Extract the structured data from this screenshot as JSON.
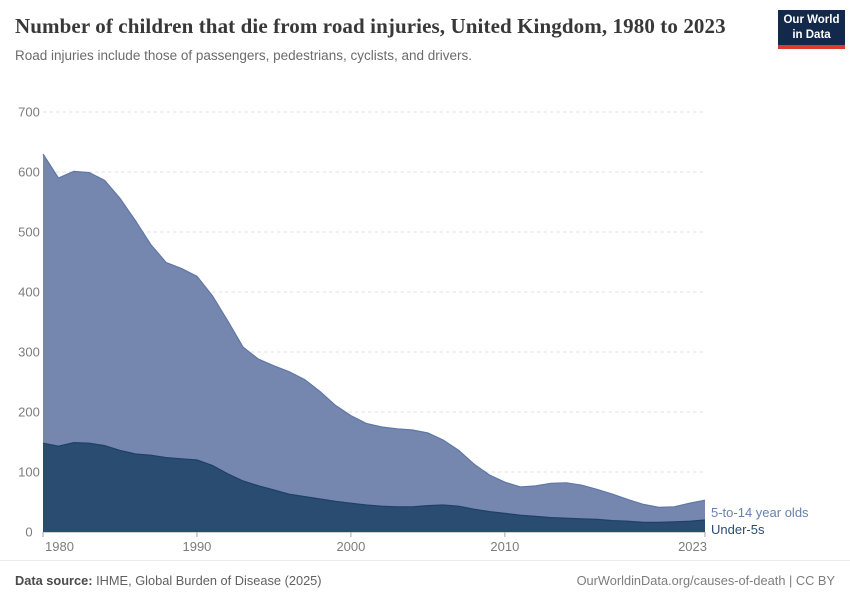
{
  "header": {
    "title": "Number of children that die from road injuries, United Kingdom, 1980 to 2023",
    "subtitle": "Road injuries include those of passengers, pedestrians, cyclists, and drivers.",
    "logo": {
      "line1": "Our World",
      "line2": "in Data"
    }
  },
  "footer": {
    "source_label": "Data source:",
    "source_text": " IHME, Global Burden of Disease (2025)",
    "right_text": "OurWorldinData.org/causes-of-death | CC BY"
  },
  "colors": {
    "gridline": "#e2e2e2",
    "axis": "#a5a5a5",
    "tick_text": "#7d7d7d",
    "title_text": "#383838",
    "logo_bg": "#12294b",
    "logo_red": "#dc3a2e"
  },
  "chart_data": {
    "type": "area",
    "stacked": true,
    "title": "Number of children that die from road injuries, United Kingdom, 1980 to 2023",
    "xlabel": "",
    "ylabel": "",
    "ylim": [
      0,
      700
    ],
    "grid": "dashed-horizontal",
    "legend_position": "right-of-plot",
    "x": [
      1980,
      1981,
      1982,
      1983,
      1984,
      1985,
      1986,
      1987,
      1988,
      1989,
      1990,
      1991,
      1992,
      1993,
      1994,
      1995,
      1996,
      1997,
      1998,
      1999,
      2000,
      2001,
      2002,
      2003,
      2004,
      2005,
      2006,
      2007,
      2008,
      2009,
      2010,
      2011,
      2012,
      2013,
      2014,
      2015,
      2016,
      2017,
      2018,
      2019,
      2020,
      2021,
      2022,
      2023
    ],
    "x_ticks": [
      1980,
      1990,
      2000,
      2010,
      2023
    ],
    "y_ticks": [
      0,
      100,
      200,
      300,
      400,
      500,
      600,
      700
    ],
    "series": [
      {
        "name": "Under-5s",
        "color": "#2b4c71",
        "edge": "#1e4067",
        "label_color": "#2b4c71",
        "values": [
          148,
          143,
          149,
          148,
          144,
          136,
          130,
          128,
          124,
          122,
          120,
          111,
          97,
          85,
          77,
          70,
          63,
          59,
          55,
          51,
          48,
          45,
          43,
          42,
          42,
          44,
          45,
          43,
          38,
          34,
          31,
          28,
          26,
          24,
          23,
          22,
          21,
          19,
          18,
          16,
          16,
          17,
          18,
          20
        ]
      },
      {
        "name": "5-to-14 year olds",
        "color": "#7687af",
        "edge": "#5e77a6",
        "label_color": "#6781b1",
        "values": [
          482,
          447,
          452,
          451,
          442,
          420,
          389,
          351,
          325,
          317,
          306,
          283,
          255,
          223,
          211,
          207,
          204,
          195,
          179,
          160,
          146,
          136,
          132,
          130,
          128,
          121,
          108,
          93,
          75,
          61,
          52,
          47,
          51,
          57,
          59,
          56,
          50,
          44,
          36,
          30,
          25,
          25,
          30,
          33
        ]
      }
    ]
  }
}
